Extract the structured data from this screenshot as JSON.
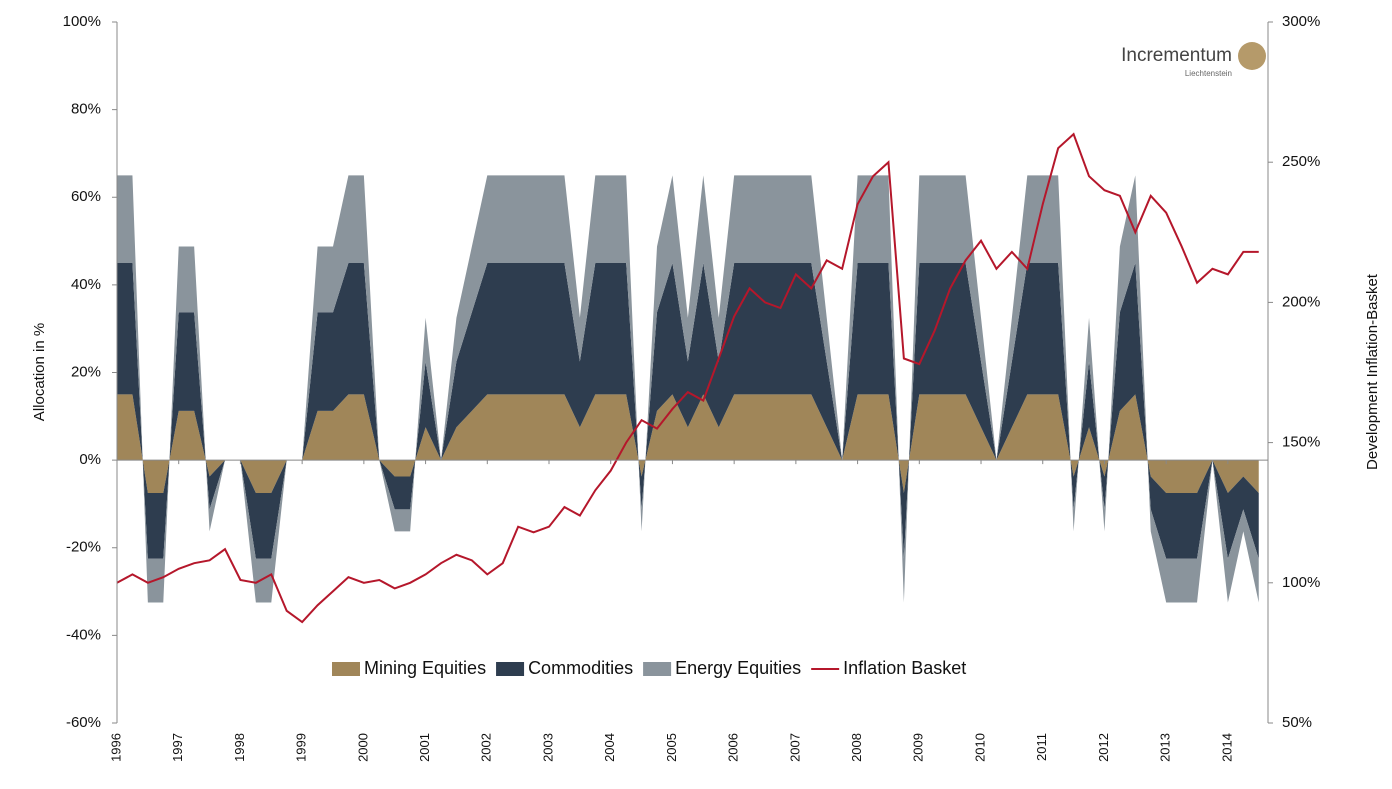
{
  "chart_data": {
    "type": "stacked_area_line",
    "y_label": "Allocation in %",
    "y2_label": "Development Inflation-Basket",
    "logo": {
      "name": "Incrementum",
      "sub": "Liechtenstein"
    },
    "legend": "bottom",
    "x": [
      1996,
      1996.25,
      1996.5,
      1996.75,
      1997,
      1997.25,
      1997.5,
      1997.75,
      1998,
      1998.25,
      1998.5,
      1998.75,
      1999,
      1999.25,
      1999.5,
      1999.75,
      2000,
      2000.25,
      2000.5,
      2000.75,
      2001,
      2001.25,
      2001.5,
      2001.75,
      2002,
      2002.25,
      2002.5,
      2002.75,
      2003,
      2003.25,
      2003.5,
      2003.75,
      2004,
      2004.25,
      2004.5,
      2004.75,
      2005,
      2005.25,
      2005.5,
      2005.75,
      2006,
      2006.25,
      2006.5,
      2006.75,
      2007,
      2007.25,
      2007.5,
      2007.75,
      2008,
      2008.25,
      2008.5,
      2008.75,
      2009,
      2009.25,
      2009.5,
      2009.75,
      2010,
      2010.25,
      2010.5,
      2010.75,
      2011,
      2011.25,
      2011.5,
      2011.75,
      2012,
      2012.25,
      2012.5,
      2012.75,
      2013,
      2013.25,
      2013.5,
      2013.75,
      2014,
      2014.25,
      2014.5
    ],
    "series": [
      {
        "name": "Mining Equities",
        "color": "#a08659",
        "values": [
          15,
          15,
          -7.5,
          -7.5,
          11.25,
          11.25,
          -3.75,
          0,
          0,
          -7.5,
          -7.5,
          0,
          0,
          11.25,
          11.25,
          15,
          15,
          0,
          -3.75,
          -3.75,
          7.5,
          0,
          7.5,
          11.25,
          15,
          15,
          15,
          15,
          15,
          15,
          7.5,
          15,
          15,
          15,
          -3.75,
          11.25,
          15,
          7.5,
          15,
          7.5,
          15,
          15,
          15,
          15,
          15,
          15,
          7.5,
          0,
          15,
          15,
          15,
          -7.5,
          15,
          15,
          15,
          15,
          7.5,
          0,
          7.5,
          15,
          15,
          15,
          -3.75,
          7.5,
          -3.75,
          11.25,
          15,
          -3.75,
          -7.5,
          -7.5,
          -7.5,
          0,
          -7.5,
          -3.75,
          -7.5
        ]
      },
      {
        "name": "Commodities",
        "color": "#2e3d4f",
        "values": [
          30,
          30,
          -15,
          -15,
          22.5,
          22.5,
          -7.5,
          0,
          0,
          -15,
          -15,
          0,
          0,
          22.5,
          22.5,
          30,
          30,
          0,
          -7.5,
          -7.5,
          15,
          0,
          15,
          22.5,
          30,
          30,
          30,
          30,
          30,
          30,
          15,
          30,
          30,
          30,
          -7.5,
          22.5,
          30,
          15,
          30,
          15,
          30,
          30,
          30,
          30,
          30,
          30,
          15,
          0,
          30,
          30,
          30,
          -15,
          30,
          30,
          30,
          30,
          15,
          0,
          15,
          30,
          30,
          30,
          -7.5,
          15,
          -7.5,
          22.5,
          30,
          -7.5,
          -15,
          -15,
          -15,
          0,
          -15,
          -7.5,
          -15
        ]
      },
      {
        "name": "Energy Equities",
        "color": "#8a949c",
        "values": [
          20,
          20,
          -10,
          -10,
          15,
          15,
          -5,
          0,
          0,
          -10,
          -10,
          0,
          0,
          15,
          15,
          20,
          20,
          0,
          -5,
          -5,
          10,
          0,
          10,
          15,
          20,
          20,
          20,
          20,
          20,
          20,
          10,
          20,
          20,
          20,
          -5,
          15,
          20,
          10,
          20,
          10,
          20,
          20,
          20,
          20,
          20,
          20,
          10,
          0,
          20,
          20,
          20,
          -10,
          20,
          20,
          20,
          20,
          10,
          0,
          10,
          20,
          20,
          20,
          -5,
          10,
          -5,
          15,
          20,
          -5,
          -10,
          -10,
          -10,
          0,
          -10,
          -5,
          -10
        ]
      },
      {
        "name": "Inflation Basket",
        "color": "#b5172b",
        "axis": "y2",
        "values": [
          100,
          103,
          100,
          102,
          105,
          107,
          108,
          112,
          101,
          100,
          103,
          90,
          86,
          92,
          97,
          102,
          100,
          101,
          98,
          100,
          103,
          107,
          110,
          108,
          103,
          107,
          120,
          118,
          120,
          127,
          124,
          133,
          140,
          150,
          158,
          155,
          162,
          168,
          165,
          180,
          195,
          205,
          200,
          198,
          210,
          205,
          215,
          212,
          235,
          245,
          250,
          180,
          178,
          190,
          205,
          215,
          222,
          212,
          218,
          212,
          235,
          255,
          260,
          245,
          240,
          238,
          225,
          238,
          232,
          220,
          207,
          212,
          210,
          218,
          218
        ]
      }
    ],
    "xlim": [
      1996,
      2014.65
    ],
    "xticks": [
      1996,
      1997,
      1998,
      1999,
      2000,
      2001,
      2002,
      2003,
      2004,
      2005,
      2006,
      2007,
      2008,
      2009,
      2010,
      2011,
      2012,
      2013,
      2014
    ],
    "ylim": [
      -60,
      100
    ],
    "yticks": [
      {
        "value": -60,
        "label": "-60%"
      },
      {
        "value": -40,
        "label": "-40%"
      },
      {
        "value": -20,
        "label": "-20%"
      },
      {
        "value": 0,
        "label": "0%"
      },
      {
        "value": 20,
        "label": "20%"
      },
      {
        "value": 40,
        "label": "40%"
      },
      {
        "value": 60,
        "label": "60%"
      },
      {
        "value": 80,
        "label": "80%"
      },
      {
        "value": 100,
        "label": "100%"
      }
    ],
    "y2lim": [
      50,
      300
    ],
    "y2ticks": [
      {
        "value": 50,
        "label": "50%"
      },
      {
        "value": 100,
        "label": "100%"
      },
      {
        "value": 150,
        "label": "150%"
      },
      {
        "value": 200,
        "label": "200%"
      },
      {
        "value": 250,
        "label": "250%"
      },
      {
        "value": 300,
        "label": "300%"
      }
    ]
  }
}
